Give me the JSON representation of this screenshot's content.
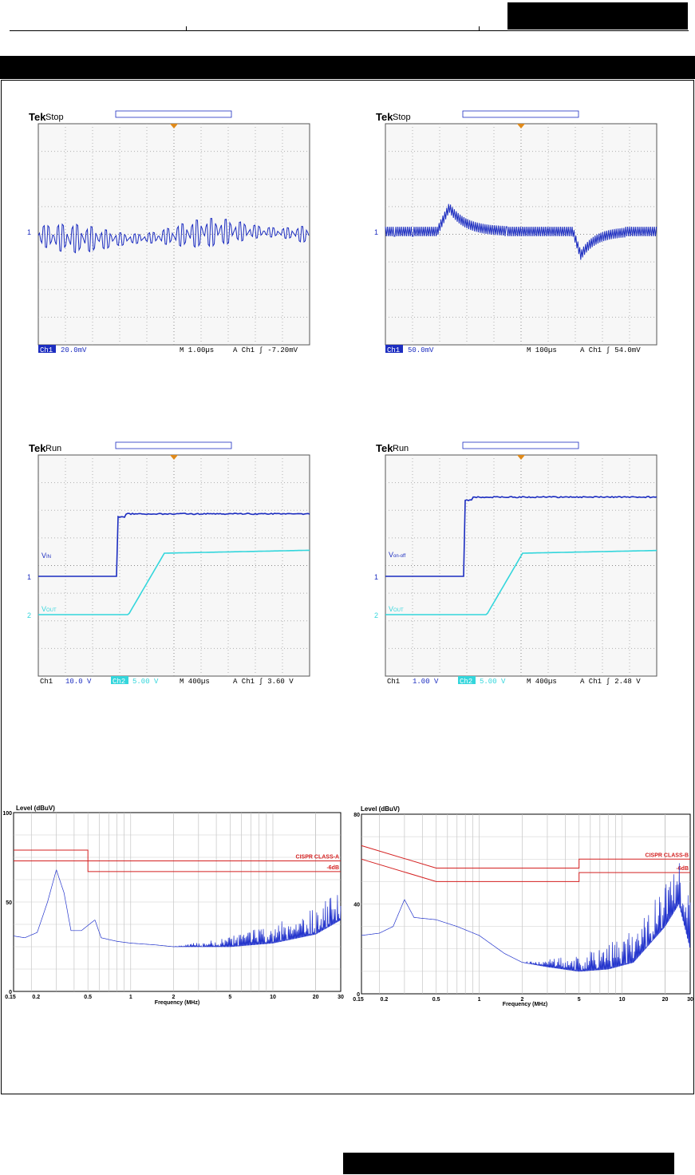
{
  "scopes": [
    {
      "brand": "Tek",
      "state": "Stop",
      "ch1_label": "Ch1",
      "ch1_scale": "20.0mV",
      "timebase": "M 1.00µs",
      "trigger": "A  Ch1  ∫ -7.20mV"
    },
    {
      "brand": "Tek",
      "state": "Stop",
      "ch1_label": "Ch1",
      "ch1_scale": "50.0mV",
      "timebase": "M 100µs",
      "trigger": "A  Ch1  ∫  54.0mV"
    },
    {
      "brand": "Tek",
      "state": "Run",
      "ch1_label": "Ch1",
      "ch1_scale": "10.0 V",
      "ch2_label": "Ch2",
      "ch2_scale": "5.00 V",
      "timebase": "M 400µs",
      "trigger": "A  Ch1  ∫  3.60 V",
      "trace1_label_main": "V",
      "trace1_label_sub": "IN",
      "trace2_label_main": "V",
      "trace2_label_sub": "OUT"
    },
    {
      "brand": "Tek",
      "state": "Run",
      "ch1_label": "Ch1",
      "ch1_scale": "1.00 V",
      "ch2_label": "Ch2",
      "ch2_scale": "5.00 V",
      "timebase": "M 400µs",
      "trigger": "A  Ch1  ∫  2.48 V",
      "trace1_label_main": "V",
      "trace1_label_sub": "on-off",
      "trace2_label_main": "V",
      "trace2_label_sub": "OUT"
    }
  ],
  "chart_data": [
    {
      "type": "line",
      "ylabel": "Level (dBuV)",
      "xlabel": "Frequency (MHz)",
      "ylim": [
        0,
        100
      ],
      "yticks": [
        "0",
        "50",
        "100"
      ],
      "xscale": "log",
      "xticks": [
        {
          "v": 0.15,
          "label": "0.15"
        },
        {
          "v": 0.2,
          "label": "0.2"
        },
        {
          "v": 0.5,
          "label": "0.5"
        },
        {
          "v": 1,
          "label": "1"
        },
        {
          "v": 2,
          "label": "2"
        },
        {
          "v": 5,
          "label": "5"
        },
        {
          "v": 10,
          "label": "10"
        },
        {
          "v": 20,
          "label": "20"
        },
        {
          "v": 30,
          "label": "30"
        }
      ],
      "limit_lines": [
        {
          "name": "CISPR CLASS-A",
          "points": [
            [
              0.15,
              79
            ],
            [
              0.5,
              79
            ],
            [
              0.5,
              73
            ],
            [
              30,
              73
            ]
          ]
        },
        {
          "name": "-6dB",
          "points": [
            [
              0.15,
              73
            ],
            [
              0.5,
              73
            ],
            [
              0.5,
              67
            ],
            [
              30,
              67
            ]
          ]
        }
      ],
      "series": [
        {
          "values": [
            [
              0.15,
              31
            ],
            [
              0.18,
              30
            ],
            [
              0.22,
              33
            ],
            [
              0.26,
              50
            ],
            [
              0.3,
              68
            ],
            [
              0.34,
              55
            ],
            [
              0.38,
              34
            ],
            [
              0.45,
              34
            ],
            [
              0.56,
              40
            ],
            [
              0.62,
              30
            ],
            [
              0.8,
              28
            ],
            [
              1.0,
              27
            ],
            [
              1.5,
              26
            ],
            [
              2,
              25
            ],
            [
              5,
              25
            ],
            [
              10,
              27
            ],
            [
              20,
              32
            ],
            [
              30,
              40
            ]
          ]
        }
      ],
      "accent": "#2233cc",
      "limit_color": "#d42020"
    },
    {
      "type": "line",
      "ylabel": "Level (dBuV)",
      "xlabel": "Frequency (MHz)",
      "ylim": [
        0,
        80
      ],
      "yticks": [
        "0",
        "40",
        "80"
      ],
      "xscale": "log",
      "xticks": [
        {
          "v": 0.15,
          "label": "0.15"
        },
        {
          "v": 0.2,
          "label": "0.2"
        },
        {
          "v": 0.5,
          "label": "0.5"
        },
        {
          "v": 1,
          "label": "1"
        },
        {
          "v": 2,
          "label": "2"
        },
        {
          "v": 5,
          "label": "5"
        },
        {
          "v": 10,
          "label": "10"
        },
        {
          "v": 20,
          "label": "20"
        },
        {
          "v": 30,
          "label": "30"
        }
      ],
      "limit_lines": [
        {
          "name": "CISPR CLASS-B",
          "points": [
            [
              0.15,
              66
            ],
            [
              0.5,
              56
            ],
            [
              5,
              56
            ],
            [
              5,
              60
            ],
            [
              30,
              60
            ]
          ]
        },
        {
          "name": "-6dB",
          "points": [
            [
              0.15,
              60
            ],
            [
              0.5,
              50
            ],
            [
              5,
              50
            ],
            [
              5,
              54
            ],
            [
              30,
              54
            ]
          ]
        }
      ],
      "series": [
        {
          "values": [
            [
              0.15,
              26
            ],
            [
              0.2,
              27
            ],
            [
              0.25,
              30
            ],
            [
              0.3,
              42
            ],
            [
              0.35,
              34
            ],
            [
              0.5,
              33
            ],
            [
              0.7,
              30
            ],
            [
              1,
              26
            ],
            [
              1.5,
              18
            ],
            [
              2,
              14
            ],
            [
              3,
              12
            ],
            [
              5,
              10
            ],
            [
              8,
              11
            ],
            [
              12,
              14
            ],
            [
              20,
              30
            ],
            [
              25,
              40
            ],
            [
              30,
              20
            ]
          ]
        }
      ],
      "accent": "#2233cc",
      "limit_color": "#d42020"
    }
  ],
  "colors": {
    "scope_bg": "#f7f7f7",
    "grid": "#9a9a9a",
    "ch1": "#1c2dc0",
    "ch2": "#33d6dc",
    "trigger_marker": "#e08a1a"
  }
}
